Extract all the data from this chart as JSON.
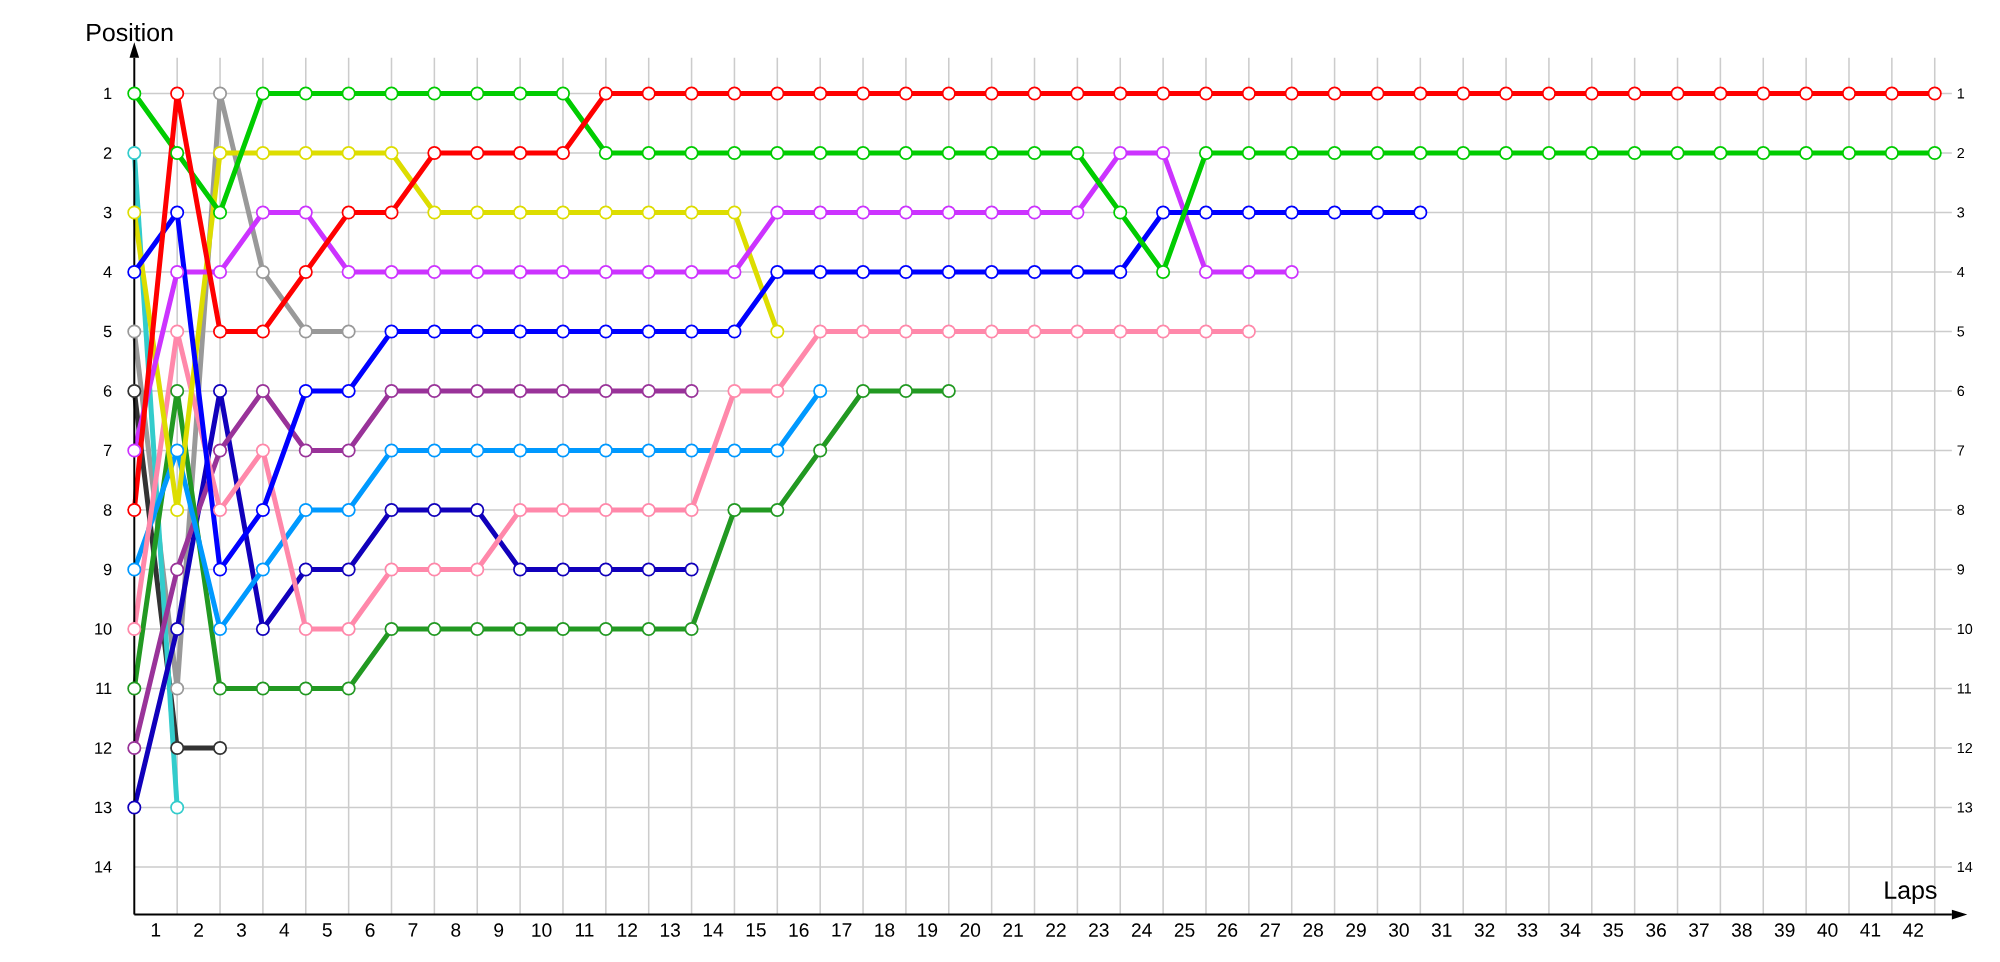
{
  "chart_data": {
    "type": "line",
    "xlabel": "Laps",
    "ylabel": "Position",
    "grid": true,
    "marker": "circle",
    "x": [
      0,
      1,
      2,
      3,
      4,
      5,
      6,
      7,
      8,
      9,
      10,
      11,
      12,
      13,
      14,
      15,
      16,
      17,
      18,
      19,
      20,
      21,
      22,
      23,
      24,
      25,
      26,
      27,
      28,
      29,
      30,
      31,
      32,
      33,
      34,
      35,
      36,
      37,
      38,
      39,
      40,
      41,
      42
    ],
    "xlim": [
      0,
      42.4
    ],
    "ylim": [
      14.8,
      0.4
    ],
    "y2lim": [
      14.8,
      0.4
    ],
    "xticks": [
      {
        "value": 0,
        "label": null
      },
      {
        "value": 1,
        "label": null
      },
      {
        "value": 2,
        "label": null
      },
      {
        "value": 3,
        "label": null
      },
      {
        "value": 4,
        "label": null
      },
      {
        "value": 5,
        "label": null
      },
      {
        "value": 6,
        "label": null
      },
      {
        "value": 7,
        "label": null
      },
      {
        "value": 8,
        "label": null
      },
      {
        "value": 9,
        "label": null
      },
      {
        "value": 10,
        "label": null
      },
      {
        "value": 11,
        "label": null
      },
      {
        "value": 12,
        "label": null
      },
      {
        "value": 13,
        "label": null
      },
      {
        "value": 14,
        "label": null
      },
      {
        "value": 15,
        "label": null
      },
      {
        "value": 16,
        "label": null
      },
      {
        "value": 17,
        "label": null
      },
      {
        "value": 18,
        "label": null
      },
      {
        "value": 19,
        "label": null
      },
      {
        "value": 20,
        "label": null
      },
      {
        "value": 21,
        "label": null
      },
      {
        "value": 22,
        "label": null
      },
      {
        "value": 23,
        "label": null
      },
      {
        "value": 24,
        "label": null
      },
      {
        "value": 25,
        "label": null
      },
      {
        "value": 26,
        "label": null
      },
      {
        "value": 27,
        "label": null
      },
      {
        "value": 28,
        "label": null
      },
      {
        "value": 29,
        "label": null
      },
      {
        "value": 30,
        "label": null
      },
      {
        "value": 31,
        "label": null
      },
      {
        "value": 32,
        "label": null
      },
      {
        "value": 33,
        "label": null
      },
      {
        "value": 34,
        "label": null
      },
      {
        "value": 35,
        "label": null
      },
      {
        "value": 36,
        "label": null
      },
      {
        "value": 37,
        "label": null
      },
      {
        "value": 38,
        "label": null
      },
      {
        "value": 39,
        "label": null
      },
      {
        "value": 40,
        "label": null
      },
      {
        "value": 41,
        "label": null
      },
      {
        "value": 42,
        "label": null
      },
      {
        "value": 0.5,
        "label": "1"
      },
      {
        "value": 1.5,
        "label": "2"
      },
      {
        "value": 2.5,
        "label": "3"
      },
      {
        "value": 3.5,
        "label": "4"
      },
      {
        "value": 4.5,
        "label": "5"
      },
      {
        "value": 5.5,
        "label": "6"
      },
      {
        "value": 6.5,
        "label": "7"
      },
      {
        "value": 7.5,
        "label": "8"
      },
      {
        "value": 8.5,
        "label": "9"
      },
      {
        "value": 9.5,
        "label": "10"
      },
      {
        "value": 10.5,
        "label": "11"
      },
      {
        "value": 11.5,
        "label": "12"
      },
      {
        "value": 12.5,
        "label": "13"
      },
      {
        "value": 13.5,
        "label": "14"
      },
      {
        "value": 14.5,
        "label": "15"
      },
      {
        "value": 15.5,
        "label": "16"
      },
      {
        "value": 16.5,
        "label": "17"
      },
      {
        "value": 17.5,
        "label": "18"
      },
      {
        "value": 18.5,
        "label": "19"
      },
      {
        "value": 19.5,
        "label": "20"
      },
      {
        "value": 20.5,
        "label": "21"
      },
      {
        "value": 21.5,
        "label": "22"
      },
      {
        "value": 22.5,
        "label": "23"
      },
      {
        "value": 23.5,
        "label": "24"
      },
      {
        "value": 24.5,
        "label": "25"
      },
      {
        "value": 25.5,
        "label": "26"
      },
      {
        "value": 26.5,
        "label": "27"
      },
      {
        "value": 27.5,
        "label": "28"
      },
      {
        "value": 28.5,
        "label": "29"
      },
      {
        "value": 29.5,
        "label": "30"
      },
      {
        "value": 30.5,
        "label": "31"
      },
      {
        "value": 31.5,
        "label": "32"
      },
      {
        "value": 32.5,
        "label": "33"
      },
      {
        "value": 33.5,
        "label": "34"
      },
      {
        "value": 34.5,
        "label": "35"
      },
      {
        "value": 35.5,
        "label": "36"
      },
      {
        "value": 36.5,
        "label": "37"
      },
      {
        "value": 37.5,
        "label": "38"
      },
      {
        "value": 38.5,
        "label": "39"
      },
      {
        "value": 39.5,
        "label": "40"
      },
      {
        "value": 40.5,
        "label": "41"
      },
      {
        "value": 41.5,
        "label": "42"
      }
    ],
    "yticks": [
      1,
      2,
      3,
      4,
      5,
      6,
      7,
      8,
      9,
      10,
      11,
      12,
      13,
      14
    ],
    "y2ticks": [
      1,
      2,
      3,
      4,
      5,
      6,
      7,
      8,
      9,
      10,
      11,
      12,
      13,
      14
    ],
    "series": [
      {
        "color": "#999999",
        "values": [
          5,
          11,
          1,
          4,
          5,
          5,
          null,
          null,
          null,
          null,
          null,
          null,
          null,
          null,
          null,
          null,
          null,
          null,
          null,
          null,
          null,
          null,
          null,
          null,
          null,
          null,
          null,
          null,
          null,
          null,
          null,
          null,
          null,
          null,
          null,
          null,
          null,
          null,
          null,
          null,
          null,
          null,
          null
        ]
      },
      {
        "color": "#333333",
        "values": [
          6,
          12,
          12,
          null,
          null,
          null,
          null,
          null,
          null,
          null,
          null,
          null,
          null,
          null,
          null,
          null,
          null,
          null,
          null,
          null,
          null,
          null,
          null,
          null,
          null,
          null,
          null,
          null,
          null,
          null,
          null,
          null,
          null,
          null,
          null,
          null,
          null,
          null,
          null,
          null,
          null,
          null,
          null
        ]
      },
      {
        "color": "#33cccc",
        "values": [
          2,
          13,
          null,
          null,
          null,
          null,
          null,
          null,
          null,
          null,
          null,
          null,
          null,
          null,
          null,
          null,
          null,
          null,
          null,
          null,
          null,
          null,
          null,
          null,
          null,
          null,
          null,
          null,
          null,
          null,
          null,
          null,
          null,
          null,
          null,
          null,
          null,
          null,
          null,
          null,
          null,
          null,
          null
        ]
      },
      {
        "color": "#1100bb",
        "values": [
          13,
          10,
          6,
          10,
          9,
          9,
          8,
          8,
          8,
          9,
          9,
          9,
          9,
          9,
          null,
          null,
          null,
          null,
          null,
          null,
          null,
          null,
          null,
          null,
          null,
          null,
          null,
          null,
          null,
          null,
          null,
          null,
          null,
          null,
          null,
          null,
          null,
          null,
          null,
          null,
          null,
          null,
          null
        ]
      },
      {
        "color": "#993399",
        "values": [
          12,
          9,
          7,
          6,
          7,
          7,
          6,
          6,
          6,
          6,
          6,
          6,
          6,
          6,
          null,
          null,
          null,
          null,
          null,
          null,
          null,
          null,
          null,
          null,
          null,
          null,
          null,
          null,
          null,
          null,
          null,
          null,
          null,
          null,
          null,
          null,
          null,
          null,
          null,
          null,
          null,
          null,
          null
        ]
      },
      {
        "color": "#229922",
        "values": [
          11,
          6,
          11,
          11,
          11,
          11,
          10,
          10,
          10,
          10,
          10,
          10,
          10,
          10,
          8,
          8,
          7,
          6,
          6,
          6,
          null,
          null,
          null,
          null,
          null,
          null,
          null,
          null,
          null,
          null,
          null,
          null,
          null,
          null,
          null,
          null,
          null,
          null,
          null,
          null,
          null,
          null,
          null
        ]
      },
      {
        "color": "#0099ff",
        "values": [
          9,
          7,
          10,
          9,
          8,
          8,
          7,
          7,
          7,
          7,
          7,
          7,
          7,
          7,
          7,
          7,
          6,
          null,
          null,
          null,
          null,
          null,
          null,
          null,
          null,
          null,
          null,
          null,
          null,
          null,
          null,
          null,
          null,
          null,
          null,
          null,
          null,
          null,
          null,
          null,
          null,
          null,
          null
        ]
      },
      {
        "color": "#ff88aa",
        "values": [
          10,
          5,
          8,
          7,
          10,
          10,
          9,
          9,
          9,
          8,
          8,
          8,
          8,
          8,
          6,
          6,
          5,
          5,
          5,
          5,
          5,
          5,
          5,
          5,
          5,
          5,
          5,
          null,
          null,
          null,
          null,
          null,
          null,
          null,
          null,
          null,
          null,
          null,
          null,
          null,
          null,
          null,
          null
        ]
      },
      {
        "color": "#dddd00",
        "values": [
          3,
          8,
          2,
          2,
          2,
          2,
          2,
          3,
          3,
          3,
          3,
          3,
          3,
          3,
          3,
          5,
          null,
          null,
          null,
          null,
          null,
          null,
          null,
          null,
          null,
          null,
          null,
          null,
          null,
          null,
          null,
          null,
          null,
          null,
          null,
          null,
          null,
          null,
          null,
          null,
          null,
          null,
          null
        ]
      },
      {
        "color": "#cc33ff",
        "values": [
          7,
          4,
          4,
          3,
          3,
          4,
          4,
          4,
          4,
          4,
          4,
          4,
          4,
          4,
          4,
          3,
          3,
          3,
          3,
          3,
          3,
          3,
          3,
          2,
          2,
          4,
          4,
          4,
          null,
          null,
          null,
          null,
          null,
          null,
          null,
          null,
          null,
          null,
          null,
          null,
          null,
          null,
          null
        ]
      },
      {
        "color": "#0000ff",
        "values": [
          4,
          3,
          9,
          8,
          6,
          6,
          5,
          5,
          5,
          5,
          5,
          5,
          5,
          5,
          5,
          4,
          4,
          4,
          4,
          4,
          4,
          4,
          4,
          4,
          3,
          3,
          3,
          3,
          3,
          3,
          3,
          null,
          null,
          null,
          null,
          null,
          null,
          null,
          null,
          null,
          null,
          null,
          null
        ]
      },
      {
        "color": "#00cc00",
        "values": [
          1,
          2,
          3,
          1,
          1,
          1,
          1,
          1,
          1,
          1,
          1,
          2,
          2,
          2,
          2,
          2,
          2,
          2,
          2,
          2,
          2,
          2,
          2,
          3,
          4,
          2,
          2,
          2,
          2,
          2,
          2,
          2,
          2,
          2,
          2,
          2,
          2,
          2,
          2,
          2,
          2,
          2,
          2
        ]
      },
      {
        "color": "#ff0000",
        "values": [
          8,
          1,
          5,
          5,
          4,
          3,
          3,
          2,
          2,
          2,
          2,
          1,
          1,
          1,
          1,
          1,
          1,
          1,
          1,
          1,
          1,
          1,
          1,
          1,
          1,
          1,
          1,
          1,
          1,
          1,
          1,
          1,
          1,
          1,
          1,
          1,
          1,
          1,
          1,
          1,
          1,
          1,
          1
        ]
      }
    ]
  }
}
